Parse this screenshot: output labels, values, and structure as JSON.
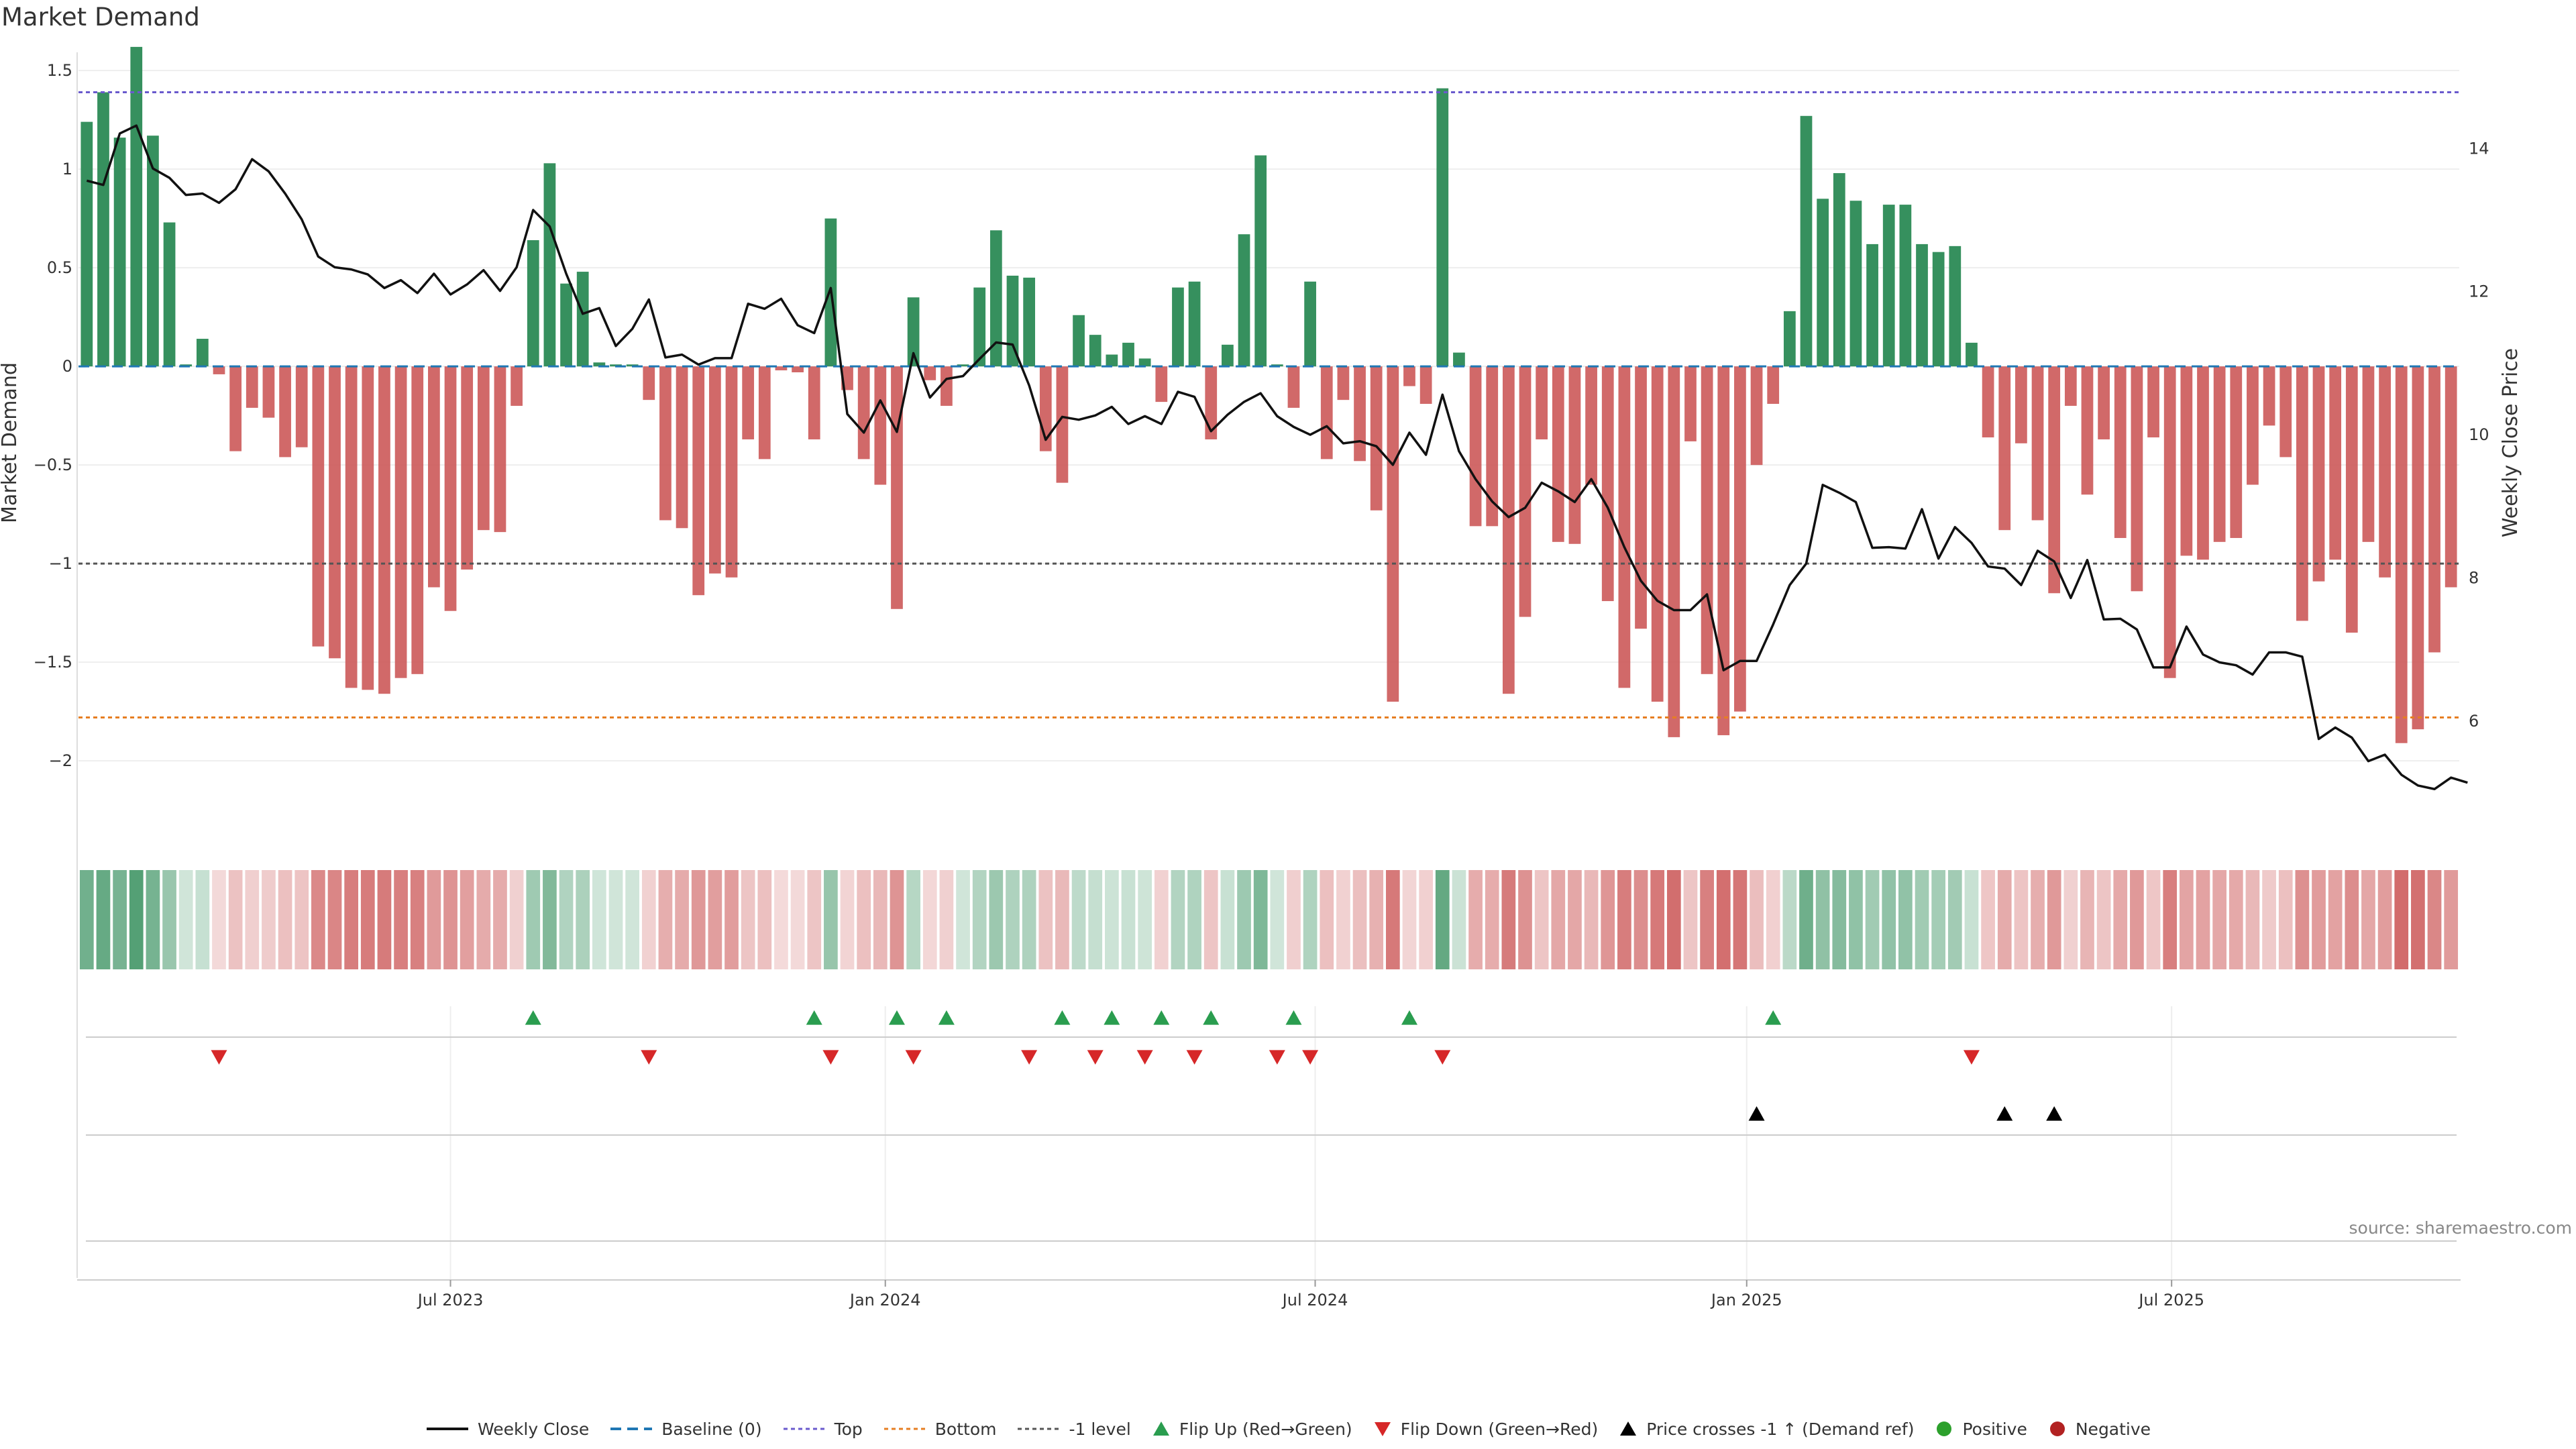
{
  "chart_data": {
    "type": "bar",
    "title": "Market Demand",
    "ylabel": "Market Demand",
    "y2label": "Weekly Close Price",
    "ylim": [
      -2.1,
      1.85
    ],
    "y2lim": [
      4.6,
      15.2
    ],
    "yticks": [
      -2,
      -1.5,
      -1,
      -0.5,
      0,
      0.5,
      1,
      1.5
    ],
    "ytick_labels": [
      "−2",
      "−1.5",
      "−1",
      "−0.5",
      "0",
      "0.5",
      "1",
      "1.5"
    ],
    "y2ticks": [
      6,
      8,
      10,
      12,
      14
    ],
    "y2tick_labels": [
      "6",
      "8",
      "10",
      "12",
      "14"
    ],
    "xticks": [
      {
        "index": 22,
        "label": "Jul 2023"
      },
      {
        "index": 48.3,
        "label": "Jan 2024"
      },
      {
        "index": 74.3,
        "label": "Jul 2024"
      },
      {
        "index": 100.4,
        "label": "Jan 2025"
      },
      {
        "index": 126.1,
        "label": "Jul 2025"
      }
    ],
    "levels": {
      "top": 1.39,
      "bottom": -1.78,
      "minus_one": -1.0,
      "baseline": 0
    },
    "series": [
      {
        "name": "Market Demand",
        "values": [
          1.24,
          1.39,
          1.16,
          1.62,
          1.17,
          0.73,
          0.01,
          0.14,
          -0.04,
          -0.43,
          -0.21,
          -0.26,
          -0.46,
          -0.41,
          -1.42,
          -1.48,
          -1.63,
          -1.64,
          -1.66,
          -1.58,
          -1.56,
          -1.12,
          -1.24,
          -1.03,
          -0.83,
          -0.84,
          -0.2,
          0.64,
          1.03,
          0.42,
          0.48,
          0.02,
          0.01,
          0.01,
          -0.17,
          -0.78,
          -0.82,
          -1.16,
          -1.05,
          -1.07,
          -0.37,
          -0.47,
          -0.02,
          -0.03,
          -0.37,
          0.75,
          -0.12,
          -0.47,
          -0.6,
          -1.23,
          0.35,
          -0.07,
          -0.2,
          0.01,
          0.4,
          0.69,
          0.46,
          0.45,
          -0.43,
          -0.59,
          0.26,
          0.16,
          0.06,
          0.12,
          0.04,
          -0.18,
          0.4,
          0.43,
          -0.37,
          0.11,
          0.67,
          1.07,
          0.01,
          -0.21,
          0.43,
          -0.47,
          -0.17,
          -0.48,
          -0.73,
          -1.7,
          -0.1,
          -0.19,
          1.41,
          0.07,
          -0.81,
          -0.81,
          -1.66,
          -1.27,
          -0.37,
          -0.89,
          -0.9,
          -0.6,
          -1.19,
          -1.63,
          -1.33,
          -1.7,
          -1.88,
          -0.38,
          -1.56,
          -1.87,
          -1.75,
          -0.5,
          -0.19,
          0.28,
          1.27,
          0.85,
          0.98,
          0.84,
          0.62,
          0.82,
          0.82,
          0.62,
          0.58,
          0.61,
          0.12,
          -0.36,
          -0.83,
          -0.39,
          -0.78,
          -1.15,
          -0.2,
          -0.65,
          -0.37,
          -0.87,
          -1.14,
          -0.36,
          -1.58,
          -0.96,
          -0.98,
          -0.89,
          -0.87,
          -0.6,
          -0.3,
          -0.46,
          -1.29,
          -1.09,
          -0.98,
          -1.35,
          -0.89,
          -1.07,
          -1.91,
          -1.84,
          -1.45,
          -1.12
        ]
      },
      {
        "name": "Weekly Close",
        "values": [
          13.55,
          13.49,
          14.21,
          14.32,
          13.72,
          13.59,
          13.35,
          13.37,
          13.24,
          13.43,
          13.85,
          13.68,
          13.37,
          13.01,
          12.49,
          12.34,
          12.31,
          12.24,
          12.05,
          12.16,
          11.98,
          12.25,
          11.96,
          12.1,
          12.3,
          12.01,
          12.34,
          13.14,
          12.91,
          12.25,
          11.69,
          11.77,
          11.24,
          11.48,
          11.89,
          11.08,
          11.12,
          10.98,
          11.07,
          11.07,
          11.83,
          11.76,
          11.9,
          11.53,
          11.42,
          12.05,
          10.29,
          10.03,
          10.48,
          10.04,
          11.14,
          10.52,
          10.78,
          10.82,
          11.06,
          11.29,
          11.26,
          10.69,
          9.93,
          10.25,
          10.21,
          10.27,
          10.39,
          10.15,
          10.26,
          10.15,
          10.6,
          10.53,
          10.05,
          10.28,
          10.46,
          10.58,
          10.26,
          10.11,
          10.0,
          10.12,
          9.88,
          9.91,
          9.84,
          9.58,
          10.03,
          9.72,
          10.56,
          9.77,
          9.38,
          9.07,
          8.85,
          8.98,
          9.33,
          9.21,
          9.06,
          9.38,
          8.98,
          8.43,
          7.96,
          7.68,
          7.55,
          7.55,
          7.77,
          6.71,
          6.84,
          6.84,
          7.35,
          7.9,
          8.2,
          9.3,
          9.19,
          9.06,
          8.42,
          8.43,
          8.41,
          8.96,
          8.27,
          8.71,
          8.49,
          8.16,
          8.13,
          7.9,
          8.38,
          8.23,
          7.72,
          8.25,
          7.42,
          7.43,
          7.28,
          6.75,
          6.75,
          7.32,
          6.93,
          6.82,
          6.78,
          6.65,
          6.96,
          6.96,
          6.9,
          5.75,
          5.91,
          5.77,
          5.44,
          5.53,
          5.25,
          5.1,
          5.05,
          5.21,
          5.14
        ]
      }
    ],
    "flip_up_indices": [
      27,
      44,
      49,
      52,
      59,
      62,
      65,
      68,
      73,
      80,
      102
    ],
    "flip_down_indices": [
      8,
      34,
      45,
      50,
      57,
      61,
      64,
      67,
      72,
      74,
      82,
      114
    ],
    "price_cross_indices": [
      101,
      116,
      119
    ],
    "legend": [
      {
        "key": "weekly_close",
        "label": "Weekly Close"
      },
      {
        "key": "baseline",
        "label": "Baseline (0)"
      },
      {
        "key": "top",
        "label": "Top"
      },
      {
        "key": "bottom",
        "label": "Bottom"
      },
      {
        "key": "minus_one",
        "label": "-1 level"
      },
      {
        "key": "flip_up",
        "label": "Flip Up (Red→Green)"
      },
      {
        "key": "flip_down",
        "label": "Flip Down (Green→Red)"
      },
      {
        "key": "price_cross",
        "label": "Price crosses -1 ↑ (Demand ref)"
      },
      {
        "key": "positive",
        "label": "Positive"
      },
      {
        "key": "negative",
        "label": "Negative"
      }
    ],
    "legend_position": "bottom-center",
    "source": "source: sharemaestro.com"
  },
  "colors": {
    "positive": "#2e8b57",
    "negative": "#cd5c5c",
    "price": "#111111",
    "baseline": "#1f77b4",
    "top": "#6a5acd",
    "bottom": "#e67e22",
    "minus_one": "#555555",
    "flip_up": "#2a9d4f",
    "flip_down": "#d62728",
    "price_cross": "#000000",
    "legend_positive": "#2ca02c",
    "legend_negative": "#b22222"
  }
}
